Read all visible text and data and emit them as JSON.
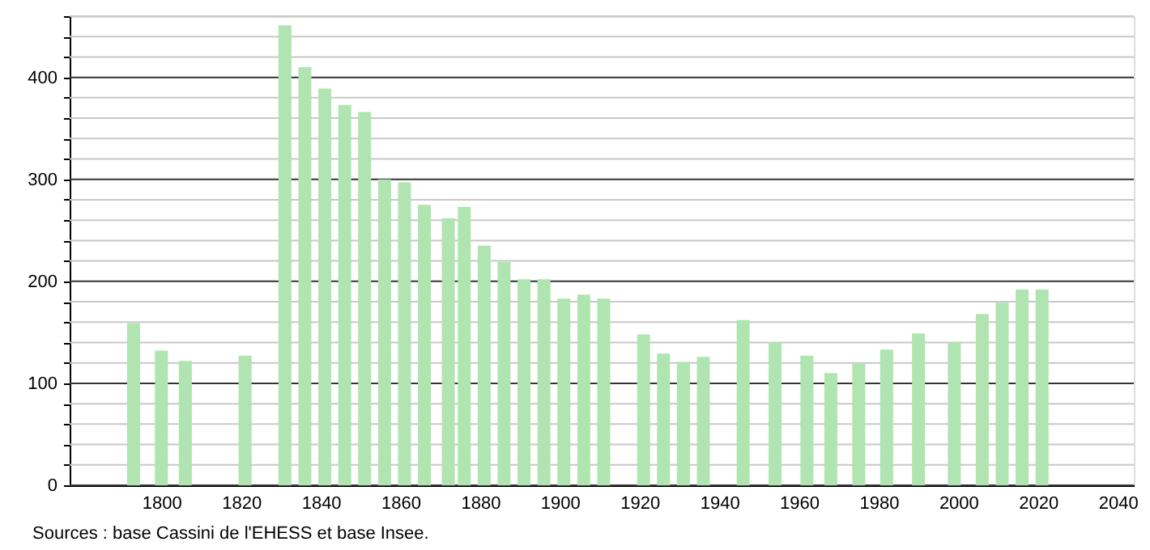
{
  "chart_data": {
    "type": "bar",
    "color": "#b0e4b0",
    "x": [
      1793,
      1800,
      1806,
      1821,
      1831,
      1836,
      1841,
      1846,
      1851,
      1856,
      1861,
      1866,
      1872,
      1876,
      1881,
      1886,
      1891,
      1896,
      1901,
      1906,
      1911,
      1921,
      1926,
      1931,
      1936,
      1946,
      1954,
      1962,
      1968,
      1975,
      1982,
      1990,
      1999,
      2006,
      2011,
      2016,
      2021
    ],
    "values": [
      159,
      132,
      122,
      127,
      451,
      410,
      389,
      373,
      366,
      300,
      297,
      275,
      262,
      273,
      235,
      219,
      202,
      202,
      183,
      187,
      183,
      148,
      129,
      121,
      126,
      162,
      140,
      127,
      110,
      119,
      133,
      149,
      140,
      168,
      179,
      192,
      192
    ],
    "xlim": [
      1779,
      2042
    ],
    "xticks": [
      1800,
      1820,
      1840,
      1860,
      1880,
      1900,
      1920,
      1940,
      1960,
      1980,
      2000,
      2020,
      2040
    ],
    "ylim": [
      0,
      460
    ],
    "yticks": [
      0,
      {
        "value": 20,
        "label": null
      },
      {
        "value": 40,
        "label": null
      },
      {
        "value": 60,
        "label": null
      },
      {
        "value": 80,
        "label": null
      },
      100,
      {
        "value": 120,
        "label": null
      },
      {
        "value": 140,
        "label": null
      },
      {
        "value": 160,
        "label": null
      },
      {
        "value": 180,
        "label": null
      },
      200,
      {
        "value": 220,
        "label": null
      },
      {
        "value": 240,
        "label": null
      },
      {
        "value": 260,
        "label": null
      },
      {
        "value": 280,
        "label": null
      },
      300,
      {
        "value": 320,
        "label": null
      },
      {
        "value": 340,
        "label": null
      },
      {
        "value": 360,
        "label": null
      },
      {
        "value": 380,
        "label": null
      },
      400,
      {
        "value": 420,
        "label": null
      },
      {
        "value": 440,
        "label": null
      },
      {
        "value": 460,
        "label": null
      }
    ],
    "grid": true,
    "annotations": [
      "Sources : base Cassini de l'EHESS et base Insee."
    ]
  }
}
